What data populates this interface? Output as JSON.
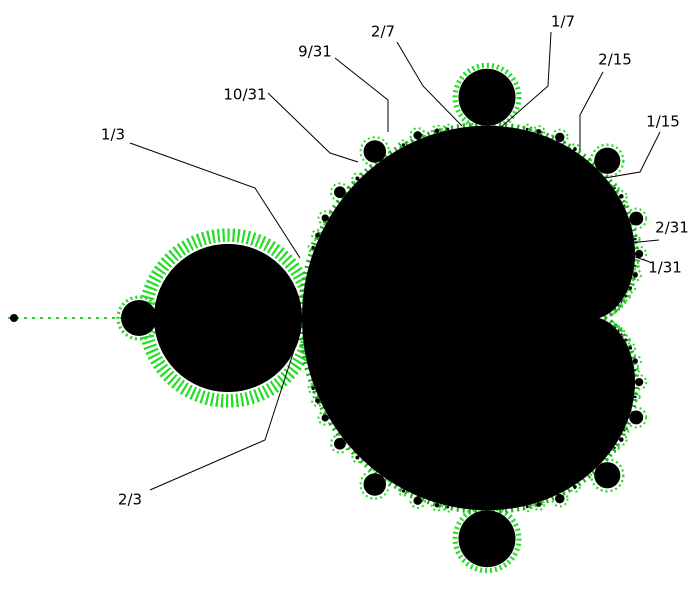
{
  "labels": [
    "1/3",
    "2/3",
    "10/31",
    "9/31",
    "2/7",
    "1/7",
    "2/15",
    "1/15",
    "2/31",
    "1/31"
  ]
}
